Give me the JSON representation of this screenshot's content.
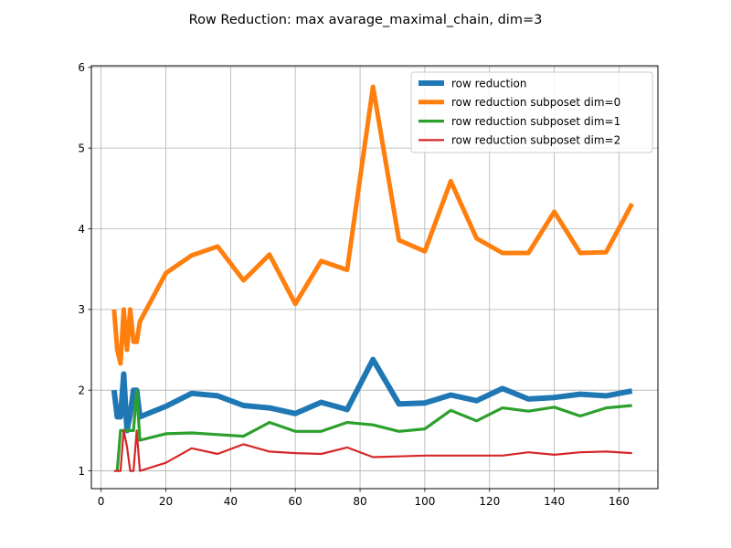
{
  "chart_data": {
    "type": "line",
    "title": "Row Reduction: max avarage_maximal_chain, dim=3",
    "xlabel": "",
    "ylabel": "",
    "xlim": [
      -3,
      172
    ],
    "ylim": [
      0.78,
      6.02
    ],
    "xticks": [
      0,
      20,
      40,
      60,
      80,
      100,
      120,
      140,
      160
    ],
    "yticks": [
      1,
      2,
      3,
      4,
      5,
      6
    ],
    "grid": true,
    "legend_position": "top-right",
    "series": [
      {
        "name": "row reduction",
        "color": "#1f77b4",
        "x": [
          4,
          5,
          6,
          7,
          8,
          9,
          10,
          11,
          12,
          20,
          28,
          36,
          44,
          52,
          60,
          68,
          76,
          84,
          92,
          100,
          108,
          116,
          124,
          132,
          140,
          148,
          156,
          164
        ],
        "y": [
          2.0,
          1.67,
          1.67,
          2.2,
          1.5,
          1.7,
          2.0,
          2.0,
          1.67,
          1.8,
          1.96,
          1.93,
          1.81,
          1.78,
          1.71,
          1.85,
          1.76,
          2.38,
          1.83,
          1.84,
          1.94,
          1.87,
          2.02,
          1.89,
          1.91,
          1.95,
          1.93,
          1.99
        ]
      },
      {
        "name": "row reduction subposet dim=0",
        "color": "#ff7f0e",
        "x": [
          4,
          5,
          6,
          7,
          8,
          9,
          10,
          11,
          12,
          20,
          28,
          36,
          44,
          52,
          60,
          68,
          76,
          84,
          92,
          100,
          108,
          116,
          124,
          132,
          140,
          148,
          156,
          164
        ],
        "y": [
          3.0,
          2.5,
          2.33,
          3.0,
          2.5,
          3.0,
          2.6,
          2.6,
          2.85,
          3.45,
          3.67,
          3.78,
          3.36,
          3.68,
          3.07,
          3.6,
          3.49,
          5.76,
          3.86,
          3.72,
          4.59,
          3.88,
          3.7,
          3.7,
          4.21,
          3.7,
          3.71,
          4.31
        ]
      },
      {
        "name": "row reduction subposet dim=1",
        "color": "#2ca02c",
        "x": [
          5,
          6,
          7,
          8,
          9,
          10,
          11,
          12,
          20,
          28,
          36,
          44,
          52,
          60,
          68,
          76,
          84,
          92,
          100,
          108,
          116,
          124,
          132,
          140,
          148,
          156,
          164
        ],
        "y": [
          1.0,
          1.5,
          1.5,
          1.5,
          1.5,
          1.5,
          2.0,
          1.38,
          1.46,
          1.47,
          1.45,
          1.43,
          1.6,
          1.49,
          1.49,
          1.6,
          1.57,
          1.49,
          1.52,
          1.75,
          1.62,
          1.78,
          1.74,
          1.79,
          1.68,
          1.78,
          1.81
        ]
      },
      {
        "name": "row reduction subposet dim=2",
        "color": "#d62728",
        "x": [
          4,
          5,
          6,
          7,
          8,
          9,
          10,
          11,
          12,
          20,
          28,
          36,
          44,
          52,
          60,
          68,
          76,
          84,
          92,
          100,
          108,
          116,
          124,
          132,
          140,
          148,
          156,
          164
        ],
        "y": [
          1.0,
          1.0,
          1.0,
          1.5,
          1.3,
          1.0,
          1.0,
          1.5,
          1.0,
          1.1,
          1.28,
          1.21,
          1.33,
          1.24,
          1.22,
          1.21,
          1.29,
          1.17,
          1.18,
          1.19,
          1.19,
          1.19,
          1.19,
          1.23,
          1.2,
          1.23,
          1.24,
          1.22
        ]
      }
    ]
  }
}
